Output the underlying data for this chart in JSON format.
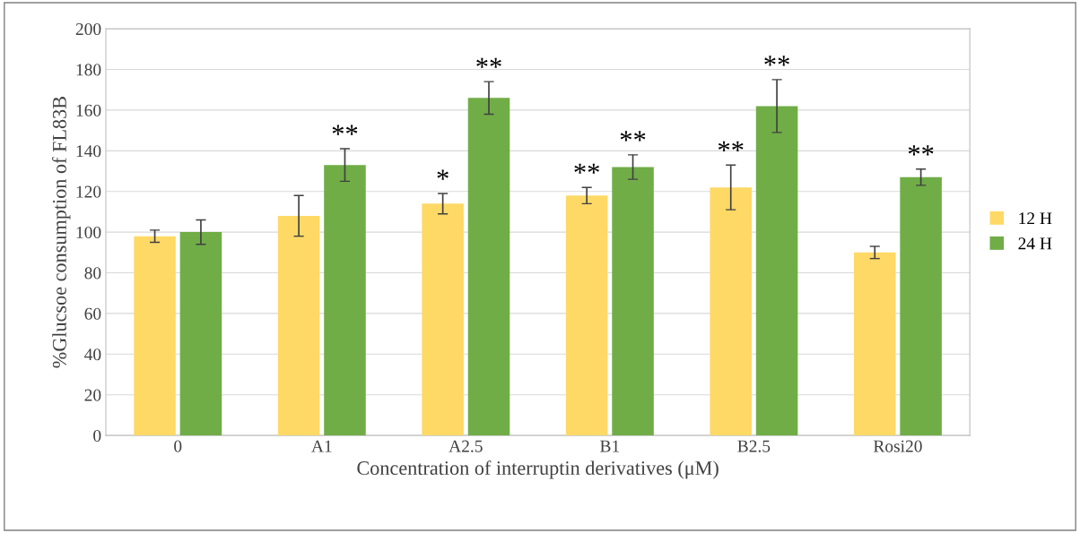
{
  "chart_data": {
    "type": "bar",
    "xlabel": "Concentration of interruptin derivatives (μM)",
    "ylabel": "%Glucsoe consumption of FL83B",
    "categories": [
      "0",
      "A1",
      "A2.5",
      "B1",
      "B2.5",
      "Rosi20"
    ],
    "series": [
      {
        "name": "12 H",
        "color": "#ffd966",
        "values": [
          98,
          108,
          114,
          118,
          122,
          90
        ],
        "errors": [
          3,
          10,
          5,
          4,
          11,
          3
        ]
      },
      {
        "name": "24 H",
        "color": "#70ad47",
        "values": [
          100,
          133,
          166,
          132,
          162,
          127
        ],
        "errors": [
          6,
          8,
          8,
          6,
          13,
          4
        ]
      }
    ],
    "annotations": [
      {
        "text": "**",
        "x": "A1",
        "y": 133
      },
      {
        "text": "*",
        "x": "A2.5",
        "y": 114
      },
      {
        "text": "**",
        "x": "A2.5",
        "y": 166
      },
      {
        "text": "**",
        "x": "B1",
        "y": 118
      },
      {
        "text": "**",
        "x": "B1",
        "y": 132
      },
      {
        "text": "**",
        "x": "B2.5",
        "y": 122
      },
      {
        "text": "**",
        "x": "B2.5",
        "y": 162
      },
      {
        "text": "**",
        "x": "Rosi20",
        "y": 127
      }
    ],
    "ylim": [
      0,
      200
    ],
    "yticks": [
      0,
      20,
      40,
      60,
      80,
      100,
      120,
      140,
      160,
      180,
      200
    ],
    "grid": "y",
    "legend": "right"
  }
}
